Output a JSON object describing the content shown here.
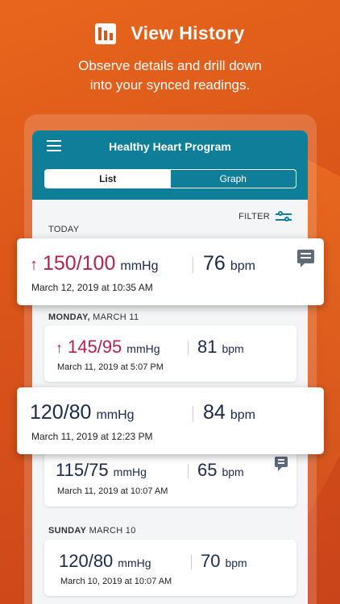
{
  "promo": {
    "title": "View History",
    "subtitle_line1": "Observe details and drill down",
    "subtitle_line2": "into your synced readings."
  },
  "app": {
    "title": "Healthy Heart Program",
    "tabs": [
      {
        "label": "List",
        "active": true
      },
      {
        "label": "Graph",
        "active": false
      }
    ],
    "filter_label": "FILTER"
  },
  "sections": {
    "today": {
      "label": "TODAY"
    },
    "monday": {
      "bold": "MONDAY,",
      "rest": " MARCH 11"
    },
    "sunday": {
      "bold": "SUNDAY",
      "rest": " MARCH 10"
    }
  },
  "readings": [
    {
      "arrow": "↑",
      "bp": "150/100",
      "bp_unit": "mmHg",
      "pulse": "76",
      "pulse_unit": "bpm",
      "date": "March 12, 2019 at 10:35 AM",
      "high": true,
      "comment": true
    },
    {
      "arrow": "↑",
      "bp": "145/95",
      "bp_unit": "mmHg",
      "pulse": "81",
      "pulse_unit": "bpm",
      "date": "March 11, 2019 at 5:07 PM",
      "high": true,
      "comment": false
    },
    {
      "arrow": "",
      "bp": "120/80",
      "bp_unit": "mmHg",
      "pulse": "84",
      "pulse_unit": "bpm",
      "date": "March 11, 2019 at 12:23 PM",
      "high": false,
      "comment": false
    },
    {
      "arrow": "",
      "bp": "115/75",
      "bp_unit": "mmHg",
      "pulse": "65",
      "pulse_unit": "bpm",
      "date": "March 11, 2019 at 10:07 AM",
      "high": false,
      "comment": true
    },
    {
      "arrow": "",
      "bp": "120/80",
      "bp_unit": "mmHg",
      "pulse": "70",
      "pulse_unit": "bpm",
      "date": "March 10, 2019 at 10:07 AM",
      "high": false,
      "comment": false
    }
  ],
  "colors": {
    "accent": "#0f7f99",
    "high": "#b3224f",
    "text": "#1b2b4b",
    "background": "#d9541a"
  },
  "icons": {
    "promo": "bar-chart-icon",
    "menu": "hamburger-menu-icon",
    "filter": "filter-sliders-icon",
    "comment": "comment-icon",
    "arrow": "arrow-up-icon"
  }
}
